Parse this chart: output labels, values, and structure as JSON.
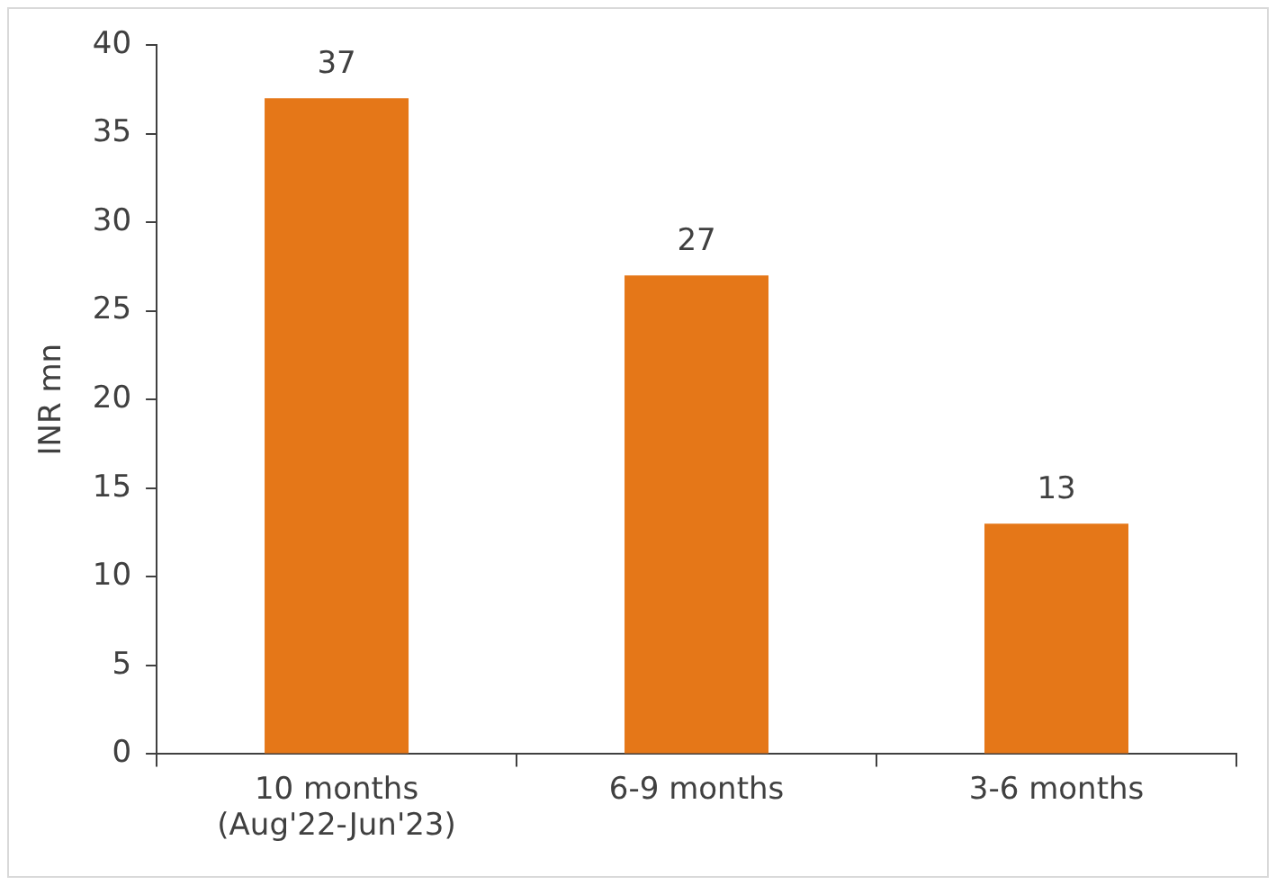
{
  "chart_data": {
    "type": "bar",
    "ylabel": "INR mn",
    "categories": [
      "10 months\n(Aug'22-Jun'23)",
      "6-9 months",
      "3-6 months"
    ],
    "values": [
      37,
      27,
      13
    ],
    "color": "#e57718",
    "ylim": [
      0,
      40
    ],
    "yticks": [
      0,
      5,
      10,
      15,
      20,
      25,
      30,
      35,
      40
    ],
    "grid": false,
    "legend": false,
    "data_labels": true
  }
}
